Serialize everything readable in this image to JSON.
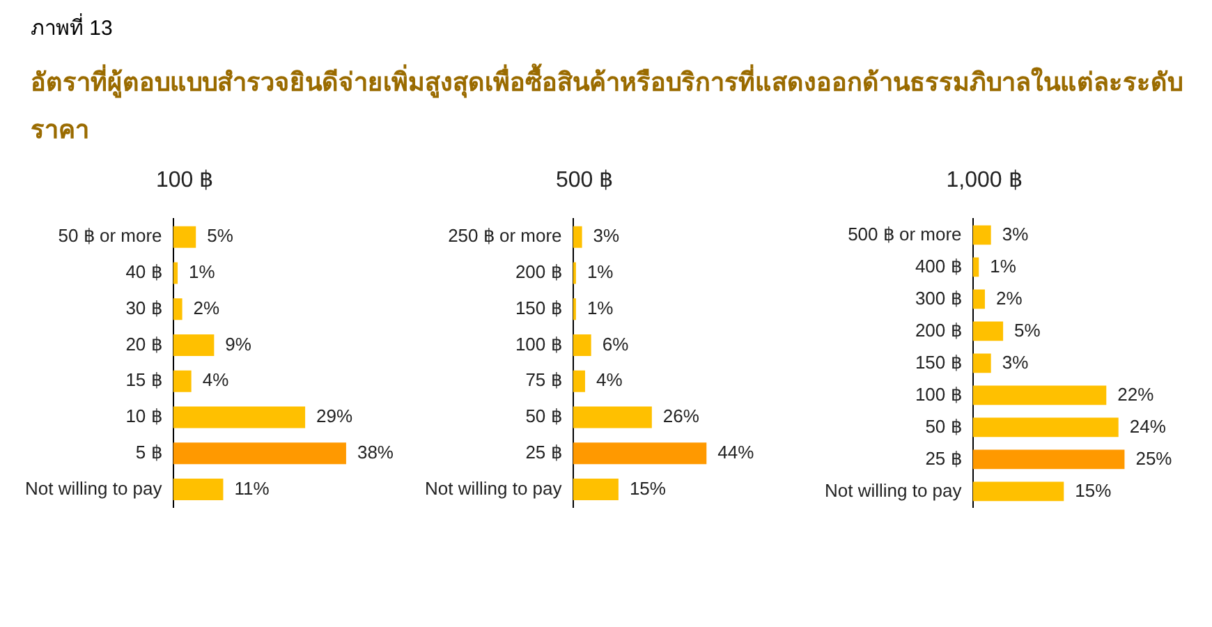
{
  "chart_data": [
    {
      "type": "bar",
      "orientation": "horizontal",
      "title": "100 ฿",
      "annotations": [
        "ภาพที่ 13",
        "อัตราที่ผู้ตอบแบบสำรวจยินดีจ่ายเพิ่มสูงสุดเพื่อซื้อสินค้าหรือบริการที่แสดงออกด้านธรรมภิบาลในแต่ละระดับราคา"
      ],
      "categories": [
        "50 ฿ or more",
        "40 ฿",
        "30 ฿",
        "20 ฿",
        "15 ฿",
        "10 ฿",
        "5 ฿",
        "Not willing to pay"
      ],
      "values": [
        5,
        1,
        2,
        9,
        4,
        29,
        38,
        11
      ],
      "colors": [
        "#ffc000",
        "#ffc000",
        "#ffc000",
        "#ffc000",
        "#ffc000",
        "#ffc000",
        "#ff9900",
        "#ffc000"
      ],
      "value_labels": [
        "5%",
        "1%",
        "2%",
        "9%",
        "4%",
        "29%",
        "38%",
        "11%"
      ],
      "legend": false,
      "tick_labels": "y"
    },
    {
      "type": "bar",
      "orientation": "horizontal",
      "title": "500 ฿",
      "categories": [
        "250 ฿ or more",
        "200 ฿",
        "150 ฿",
        "100 ฿",
        "75 ฿",
        "50 ฿",
        "25 ฿",
        "Not willing to pay"
      ],
      "values": [
        3,
        1,
        1,
        6,
        4,
        26,
        44,
        15
      ],
      "colors": [
        "#ffc000",
        "#ffc000",
        "#ffc000",
        "#ffc000",
        "#ffc000",
        "#ffc000",
        "#ff9900",
        "#ffc000"
      ],
      "value_labels": [
        "3%",
        "1%",
        "1%",
        "6%",
        "4%",
        "26%",
        "44%",
        "15%"
      ],
      "legend": false,
      "tick_labels": "y"
    },
    {
      "type": "bar",
      "orientation": "horizontal",
      "title": "1,000 ฿",
      "categories": [
        "500 ฿ or more",
        "400 ฿",
        "300 ฿",
        "200 ฿",
        "150 ฿",
        "100 ฿",
        "50 ฿",
        "25 ฿",
        "Not willing to pay"
      ],
      "values": [
        3,
        1,
        2,
        5,
        3,
        22,
        24,
        25,
        15
      ],
      "colors": [
        "#ffc000",
        "#ffc000",
        "#ffc000",
        "#ffc000",
        "#ffc000",
        "#ffc000",
        "#ffc000",
        "#ff9900",
        "#ffc000"
      ],
      "value_labels": [
        "3%",
        "1%",
        "2%",
        "5%",
        "3%",
        "22%",
        "24%",
        "25%",
        "15%"
      ],
      "legend": false,
      "tick_labels": "y"
    }
  ]
}
